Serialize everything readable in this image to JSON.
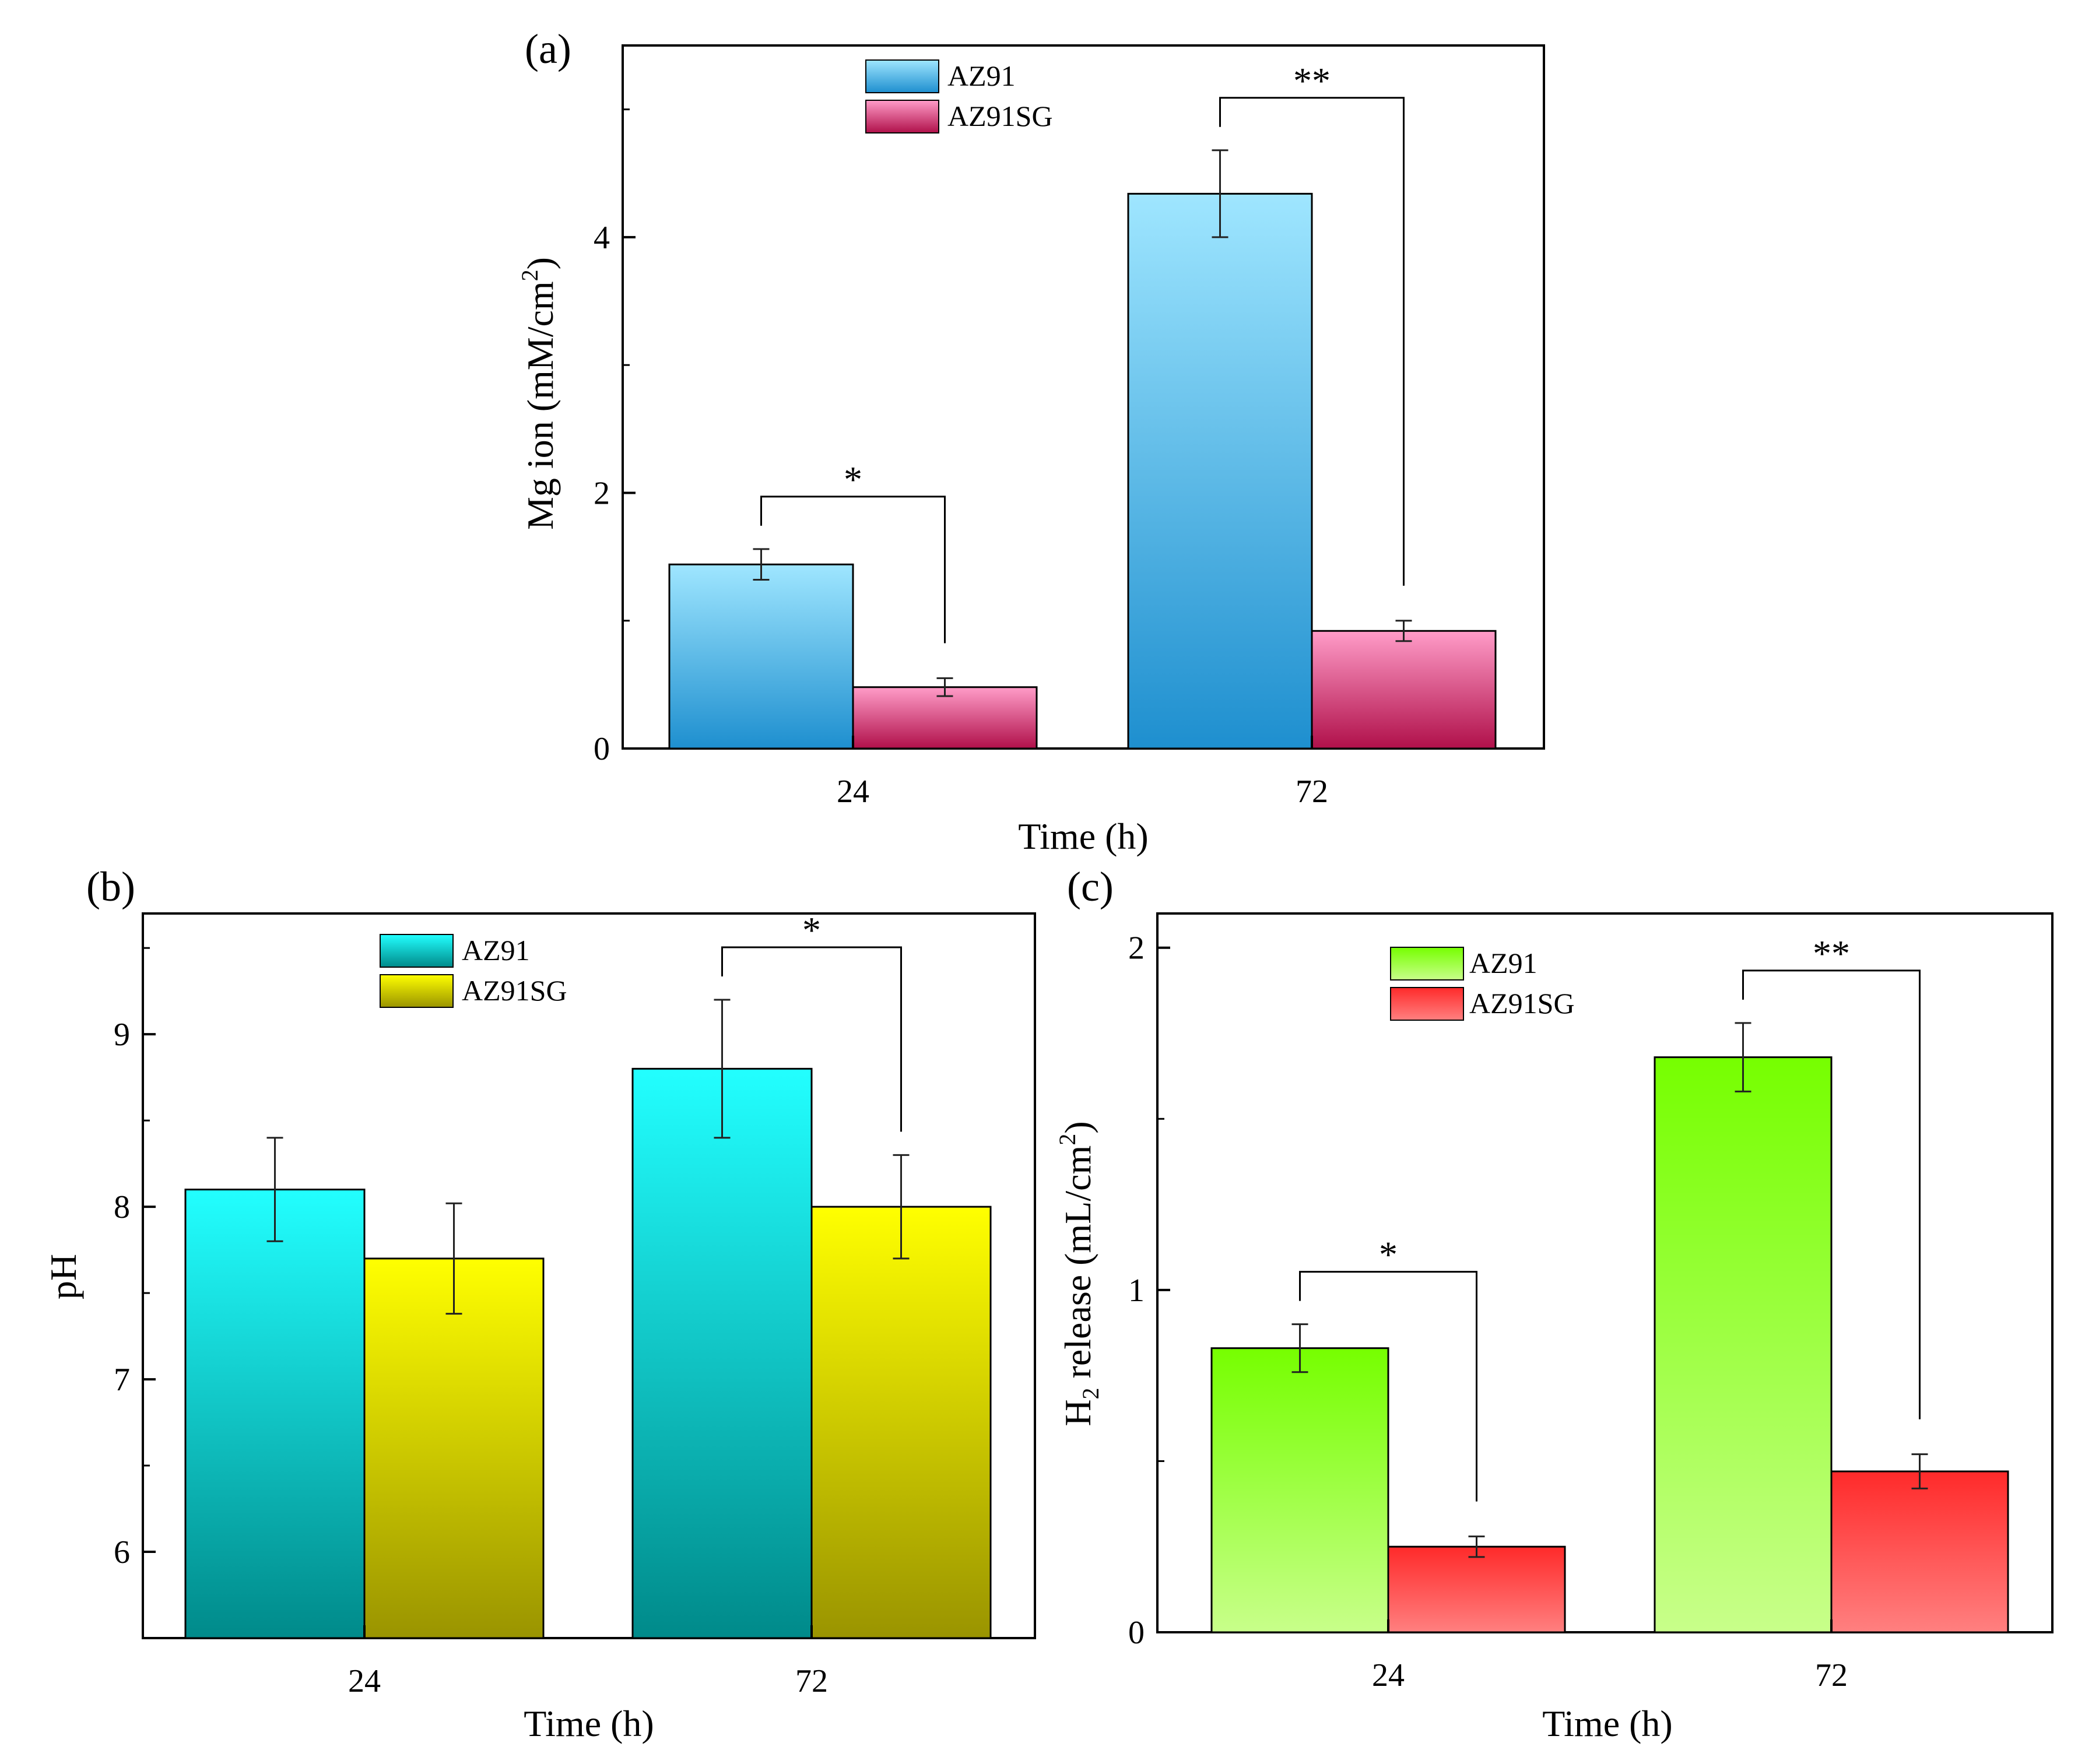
{
  "chart_data": [
    {
      "panel": "(a)",
      "type": "bar",
      "categories": [
        "24",
        "72"
      ],
      "series": [
        {
          "name": "AZ91",
          "values": [
            1.44,
            4.34
          ],
          "errors": [
            0.12,
            0.34
          ]
        },
        {
          "name": "AZ91SG",
          "values": [
            0.48,
            0.92
          ],
          "errors": [
            0.07,
            0.08
          ]
        }
      ],
      "ylabel_main": "Mg ion (mM/cm",
      "ylabel_sup": "2",
      "ylabel_end": ")",
      "xlabel": "Time (h)",
      "ylim": [
        0,
        5.5
      ],
      "yticks": [
        0,
        2,
        4
      ],
      "significance": [
        "*",
        "**"
      ],
      "legend_position": "top-center"
    },
    {
      "panel": "(b)",
      "type": "bar",
      "categories": [
        "24",
        "72"
      ],
      "series": [
        {
          "name": "AZ91",
          "values": [
            8.1,
            8.8
          ],
          "errors": [
            0.3,
            0.4
          ]
        },
        {
          "name": "AZ91SG",
          "values": [
            7.7,
            8.0
          ],
          "errors": [
            0.32,
            0.3
          ]
        }
      ],
      "ylabel": "pH",
      "xlabel": "Time (h)",
      "ylim": [
        5.5,
        9.7
      ],
      "yticks": [
        6,
        7,
        8,
        9
      ],
      "significance": [
        "",
        "*"
      ],
      "legend_position": "top-center"
    },
    {
      "panel": "(c)",
      "type": "bar",
      "categories": [
        "24",
        "72"
      ],
      "series": [
        {
          "name": "AZ91",
          "values": [
            0.83,
            1.68
          ],
          "errors": [
            0.07,
            0.1
          ]
        },
        {
          "name": "AZ91SG",
          "values": [
            0.25,
            0.47
          ],
          "errors": [
            0.03,
            0.05
          ]
        }
      ],
      "ylabel_pre": "H",
      "ylabel_sub": "2",
      "ylabel_main": " release (mL/cm",
      "ylabel_sup": "2",
      "ylabel_end": ")",
      "xlabel": "Time (h)",
      "ylim": [
        0,
        2.1
      ],
      "yticks": [
        0,
        1,
        2
      ],
      "significance": [
        "*",
        "**"
      ],
      "legend_position": "top-left"
    }
  ],
  "colors": {
    "a_s1_top": "#9fe6ff",
    "a_s1_bot": "#1e8fcf",
    "a_s2_top": "#ff9cc8",
    "a_s2_bot": "#b0104a",
    "b_s1_top": "#22ffff",
    "b_s1_bot": "#008a8a",
    "b_s2_top": "#ffff00",
    "b_s2_bot": "#9a9400",
    "c_s1_top": "#76ff00",
    "c_s1_bot": "#c8ff8a",
    "c_s2_top": "#ff2a2a",
    "c_s2_bot": "#ff8080"
  }
}
